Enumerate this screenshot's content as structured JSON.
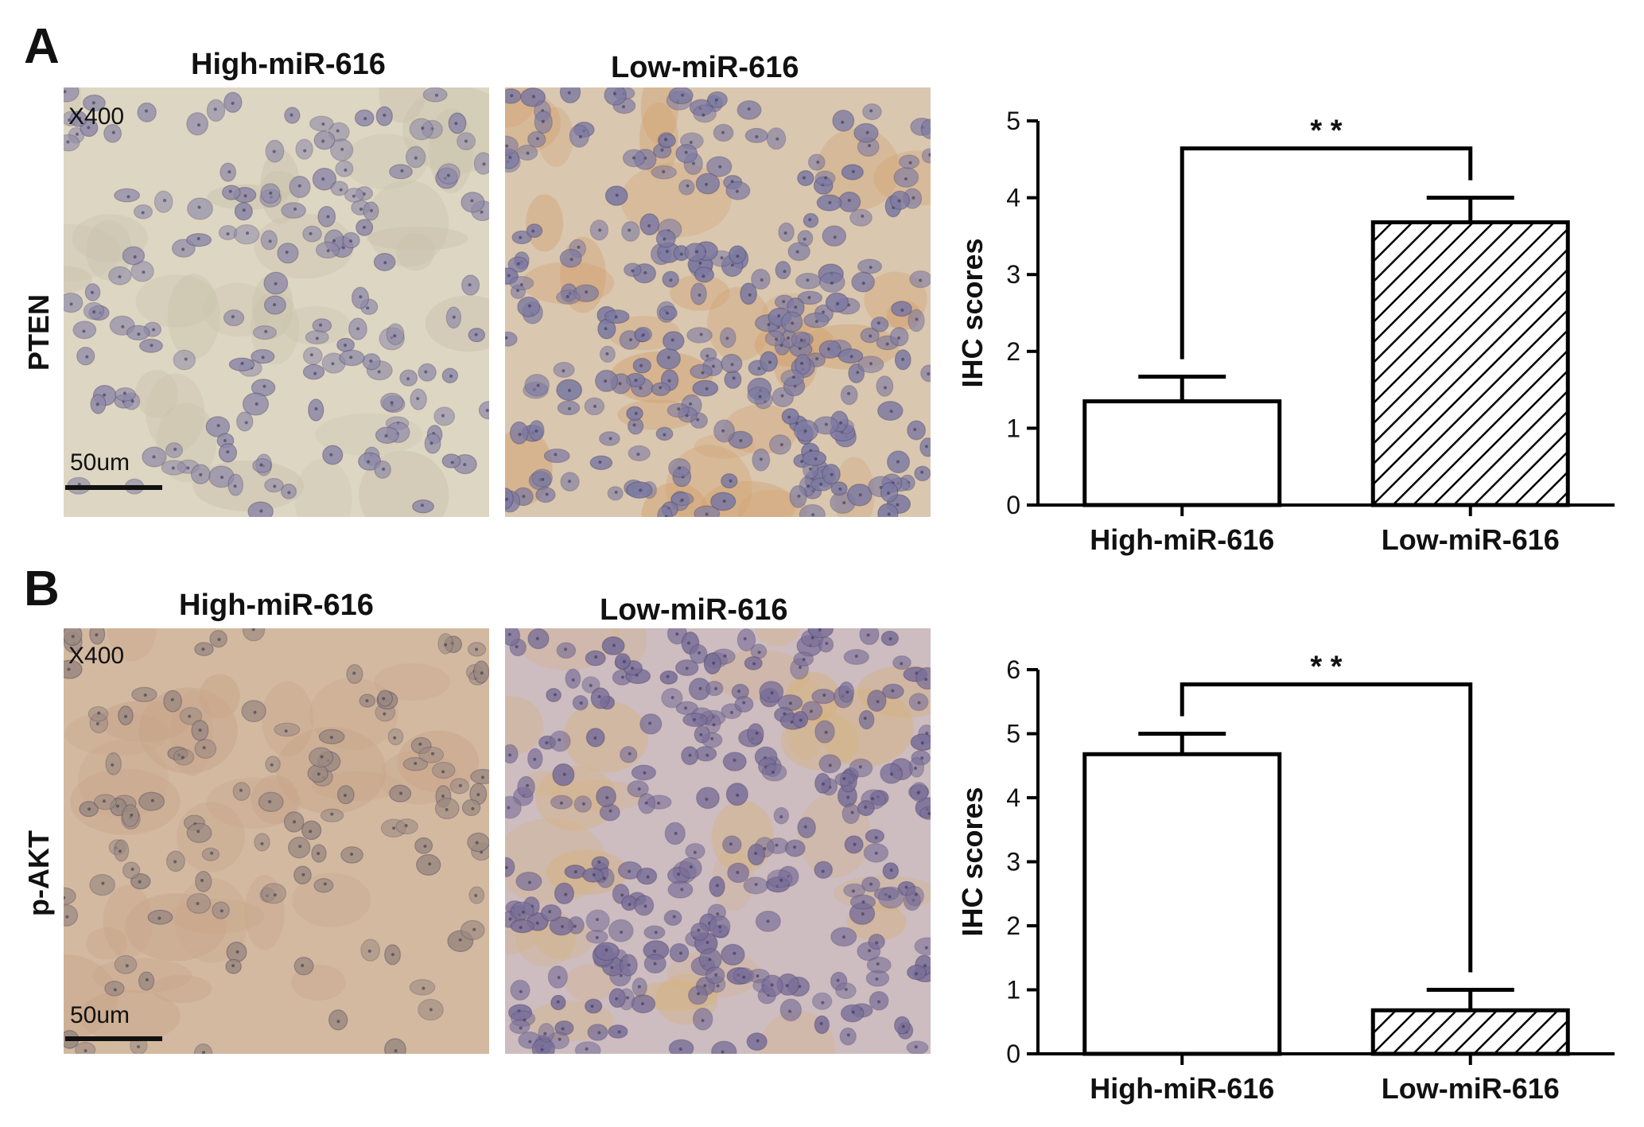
{
  "panels": [
    {
      "letter": "A",
      "marker": "PTEN",
      "magnification": "X400",
      "scale_label": "50um",
      "image_titles": [
        "High-miR-616",
        "Low-miR-616"
      ],
      "image_tint": [
        "#ddd6c3",
        "#d9c7b0"
      ]
    },
    {
      "letter": "B",
      "marker": "p-AKT",
      "magnification": "X400",
      "scale_label": "50um",
      "image_titles": [
        "High-miR-616",
        "Low-miR-616"
      ],
      "image_tint": [
        "#d2b9a0",
        "#cdbcc0"
      ]
    }
  ],
  "chart_data": [
    {
      "type": "bar",
      "categories": [
        "High-miR-616",
        "Low-miR-616"
      ],
      "values": [
        1.35,
        3.68
      ],
      "errors": [
        0.32,
        0.32
      ],
      "fill_patterns": [
        "none",
        "hatch"
      ],
      "ylabel": "IHC scores",
      "ylim": [
        0,
        5
      ],
      "yticks": [
        0,
        1,
        2,
        3,
        4,
        5
      ],
      "significance": "* *",
      "colors": {
        "bar_edge": "#000000",
        "bar_fill": "#ffffff",
        "hatch": "#000000"
      }
    },
    {
      "type": "bar",
      "categories": [
        "High-miR-616",
        "Low-miR-616"
      ],
      "values": [
        4.68,
        0.68
      ],
      "errors": [
        0.32,
        0.32
      ],
      "fill_patterns": [
        "none",
        "hatch"
      ],
      "ylabel": "IHC scores",
      "ylim": [
        0,
        6
      ],
      "yticks": [
        0,
        1,
        2,
        3,
        4,
        5,
        6
      ],
      "significance": "* *",
      "colors": {
        "bar_edge": "#000000",
        "bar_fill": "#ffffff",
        "hatch": "#000000"
      }
    }
  ]
}
